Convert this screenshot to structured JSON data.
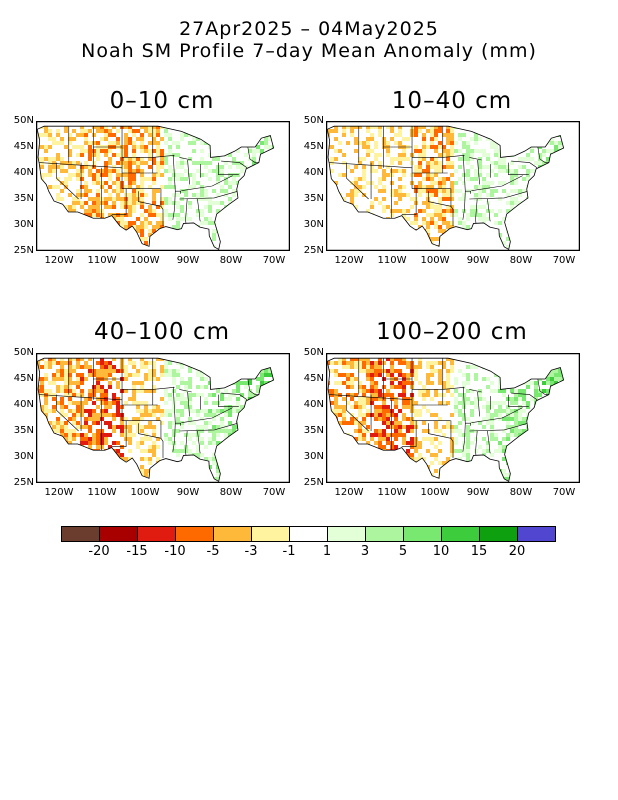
{
  "title": {
    "line1": "27Apr2025 – 04May2025",
    "line2": "Noah SM Profile 7–day Mean Anomaly (mm)"
  },
  "panels": [
    {
      "label": "0–10 cm"
    },
    {
      "label": "10–40 cm"
    },
    {
      "label": "40–100 cm"
    },
    {
      "label": "100–200 cm"
    }
  ],
  "axes": {
    "lat_labels": [
      "50N",
      "45N",
      "40N",
      "35N",
      "30N",
      "25N"
    ],
    "lon_labels": [
      "120W",
      "110W",
      "100W",
      "90W",
      "80W",
      "70W"
    ]
  },
  "colorbar": {
    "colors": [
      "#6b3d2e",
      "#a80000",
      "#e01c10",
      "#ff6a00",
      "#ffb93a",
      "#fff3a0",
      "#ffffff",
      "#e2ffd8",
      "#aef5a0",
      "#78e870",
      "#3ccc3c",
      "#0fa00f",
      "#5046d0"
    ],
    "labels": [
      "-20",
      "-15",
      "-10",
      "-5",
      "-3",
      "-1",
      "1",
      "3",
      "5",
      "10",
      "15",
      "20"
    ]
  }
}
